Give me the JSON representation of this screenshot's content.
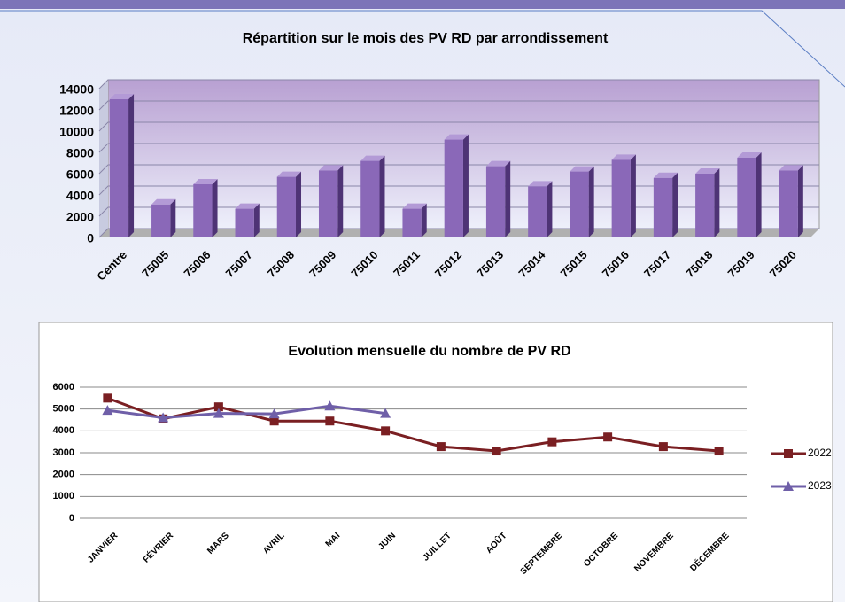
{
  "chart_data": [
    {
      "type": "bar3d",
      "title": "Répartition sur le mois des PV RD par arrondissement",
      "categories": [
        "Centre",
        "75005",
        "75006",
        "75007",
        "75008",
        "75009",
        "75010",
        "75011",
        "75012",
        "75013",
        "75014",
        "75015",
        "75016",
        "75017",
        "75018",
        "75019",
        "75020"
      ],
      "values": [
        13000,
        3100,
        5000,
        2700,
        5700,
        6300,
        7200,
        2700,
        9200,
        6700,
        4800,
        6200,
        7300,
        5600,
        6000,
        7500,
        6300
      ],
      "color": "#8a68b8",
      "ylim": [
        0,
        14000
      ],
      "yticks": [
        0,
        2000,
        4000,
        6000,
        8000,
        10000,
        12000,
        14000
      ],
      "grid": true
    },
    {
      "type": "line",
      "title": "Evolution mensuelle du nombre de PV RD",
      "categories": [
        "JANVIER",
        "FÉVRIER",
        "MARS",
        "AVRIL",
        "MAI",
        "JUIN",
        "JUILLET",
        "AOÛT",
        "SEPTEMBRE",
        "OCTOBRE",
        "NOVEMBRE",
        "DÉCEMBRE"
      ],
      "series": [
        {
          "name": "2022",
          "color": "#7a1f22",
          "marker": "square",
          "values": [
            5500,
            4550,
            5100,
            4450,
            4450,
            4000,
            3280,
            3080,
            3500,
            3720,
            3280,
            3080
          ]
        },
        {
          "name": "2023",
          "color": "#6f5fa8",
          "marker": "triangle",
          "values": [
            4940,
            4600,
            4800,
            4780,
            5140,
            4800,
            null,
            null,
            null,
            null,
            null,
            null
          ]
        }
      ],
      "ylim": [
        0,
        6000
      ],
      "yticks": [
        0,
        1000,
        2000,
        3000,
        4000,
        5000,
        6000
      ],
      "grid": true,
      "legend": "right"
    }
  ]
}
